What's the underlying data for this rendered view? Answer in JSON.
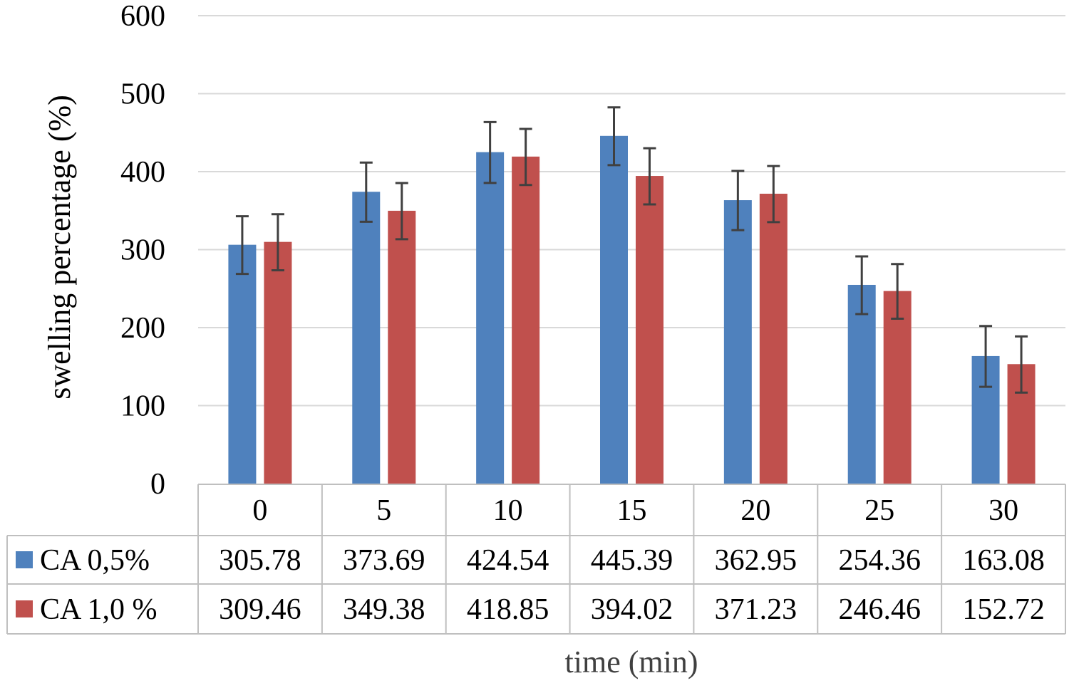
{
  "chart_data": {
    "type": "bar",
    "xlabel": "time (min)",
    "ylabel": "swelling percentage (%)",
    "ylim": [
      0,
      600
    ],
    "yticks": [
      0,
      100,
      200,
      300,
      400,
      500,
      600
    ],
    "grid": true,
    "legend": "data-table",
    "categories": [
      "0",
      "5",
      "10",
      "15",
      "20",
      "25",
      "30"
    ],
    "series": [
      {
        "name": "CA 0,5%",
        "color": "#4f81bd",
        "values": [
          305.78,
          373.69,
          424.54,
          445.39,
          362.95,
          254.36,
          163.08
        ],
        "labels": [
          "305.78",
          "373.69",
          "424.54",
          "445.39",
          "362.95",
          "254.36",
          "163.08"
        ],
        "error": [
          37,
          38,
          39,
          37,
          38,
          37,
          39
        ]
      },
      {
        "name": "CA 1,0 %",
        "color": "#c0504d",
        "values": [
          309.46,
          349.38,
          418.85,
          394.02,
          371.23,
          246.46,
          152.72
        ],
        "labels": [
          "309.46",
          "349.38",
          "418.85",
          "394.02",
          "371.23",
          "246.46",
          "152.72"
        ],
        "error": [
          36,
          36,
          36,
          36,
          36,
          35,
          36
        ]
      }
    ]
  }
}
